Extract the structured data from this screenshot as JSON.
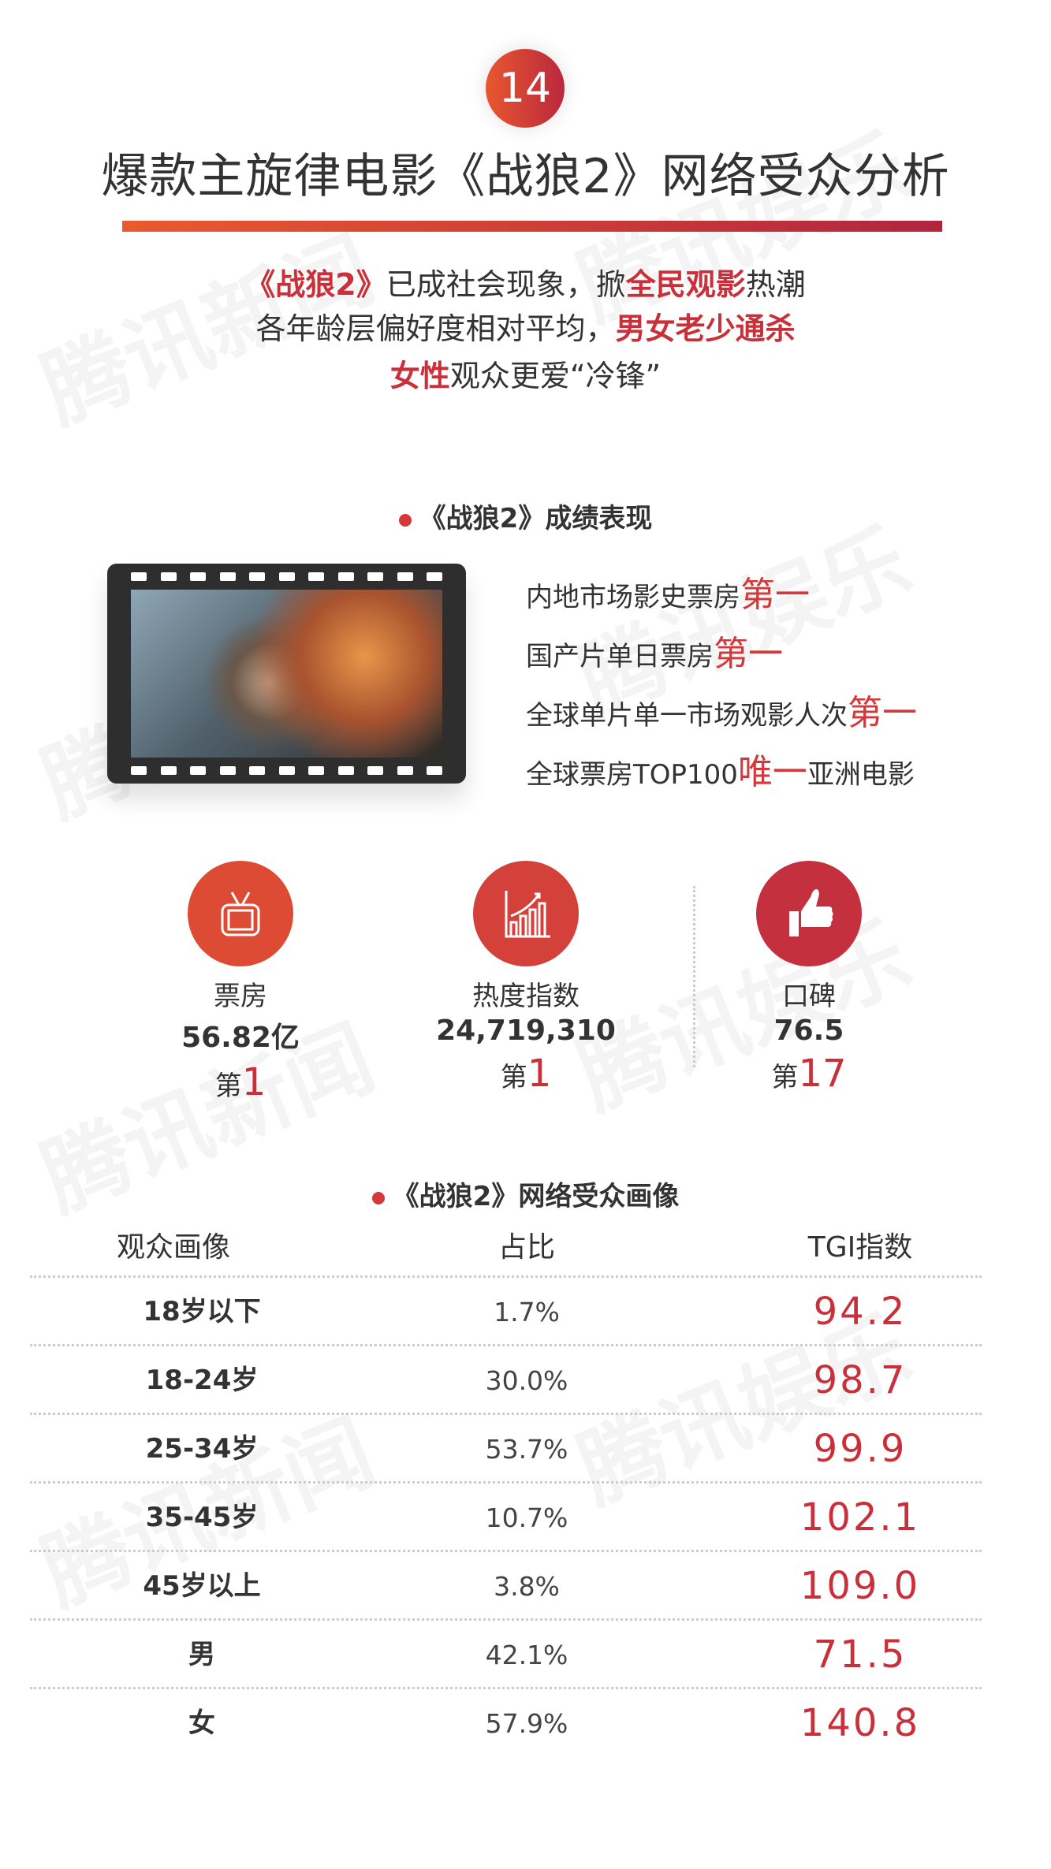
{
  "watermarks": [
    "腾讯新闻",
    "腾讯娱乐"
  ],
  "badge_number": "14",
  "title": "爆款主旋律电影《战狼2》网络受众分析",
  "subtitle": {
    "line1": [
      {
        "t": "《战狼2》",
        "hl": true
      },
      {
        "t": "已成社会现象，掀",
        "hl": false
      },
      {
        "t": "全民观影",
        "hl": true
      },
      {
        "t": "热潮",
        "hl": false
      }
    ],
    "line2": [
      {
        "t": "各年龄层偏好度相对平均，",
        "hl": false
      },
      {
        "t": "男女老少通杀",
        "hl": true
      }
    ],
    "line3": [
      {
        "t": "女性",
        "hl": true
      },
      {
        "t": "观众更爱“冷锋”",
        "hl": false
      }
    ]
  },
  "performance": {
    "heading": "《战狼2》成绩表现",
    "facts": [
      {
        "pre": "内地市场影史票房",
        "em": "第一",
        "post": ""
      },
      {
        "pre": "国产片单日票房",
        "em": "第一",
        "post": ""
      },
      {
        "pre": "全球单片单一市场观影人次",
        "em": "第一",
        "post": ""
      },
      {
        "pre": "全球票房TOP100",
        "em": "唯一",
        "post": "亚洲电影"
      }
    ]
  },
  "stats": [
    {
      "icon": "tv-icon",
      "label": "票房",
      "value": "56.82亿",
      "rank_prefix": "第",
      "rank": "1",
      "color": "#de4b35"
    },
    {
      "icon": "bar-chart-icon",
      "label": "热度指数",
      "value": "24,719,310",
      "rank_prefix": "第",
      "rank": "1",
      "color": "#d4403a"
    },
    {
      "icon": "thumbs-up-icon",
      "label": "口碑",
      "value": "76.5",
      "rank_prefix": "第",
      "rank": "17",
      "color": "#c5303f"
    }
  ],
  "audience": {
    "heading": "《战狼2》网络受众画像",
    "columns": [
      "观众画像",
      "占比",
      "TGI指数"
    ],
    "rows": [
      {
        "group": "18岁以下",
        "share": "1.7%",
        "tgi": "94.2"
      },
      {
        "group": "18-24岁",
        "share": "30.0%",
        "tgi": "98.7"
      },
      {
        "group": "25-34岁",
        "share": "53.7%",
        "tgi": "99.9"
      },
      {
        "group": "35-45岁",
        "share": "10.7%",
        "tgi": "102.1"
      },
      {
        "group": "45岁以上",
        "share": "3.8%",
        "tgi": "109.0"
      },
      {
        "group": "男",
        "share": "42.1%",
        "tgi": "71.5"
      },
      {
        "group": "女",
        "share": "57.9%",
        "tgi": "140.8"
      }
    ]
  }
}
